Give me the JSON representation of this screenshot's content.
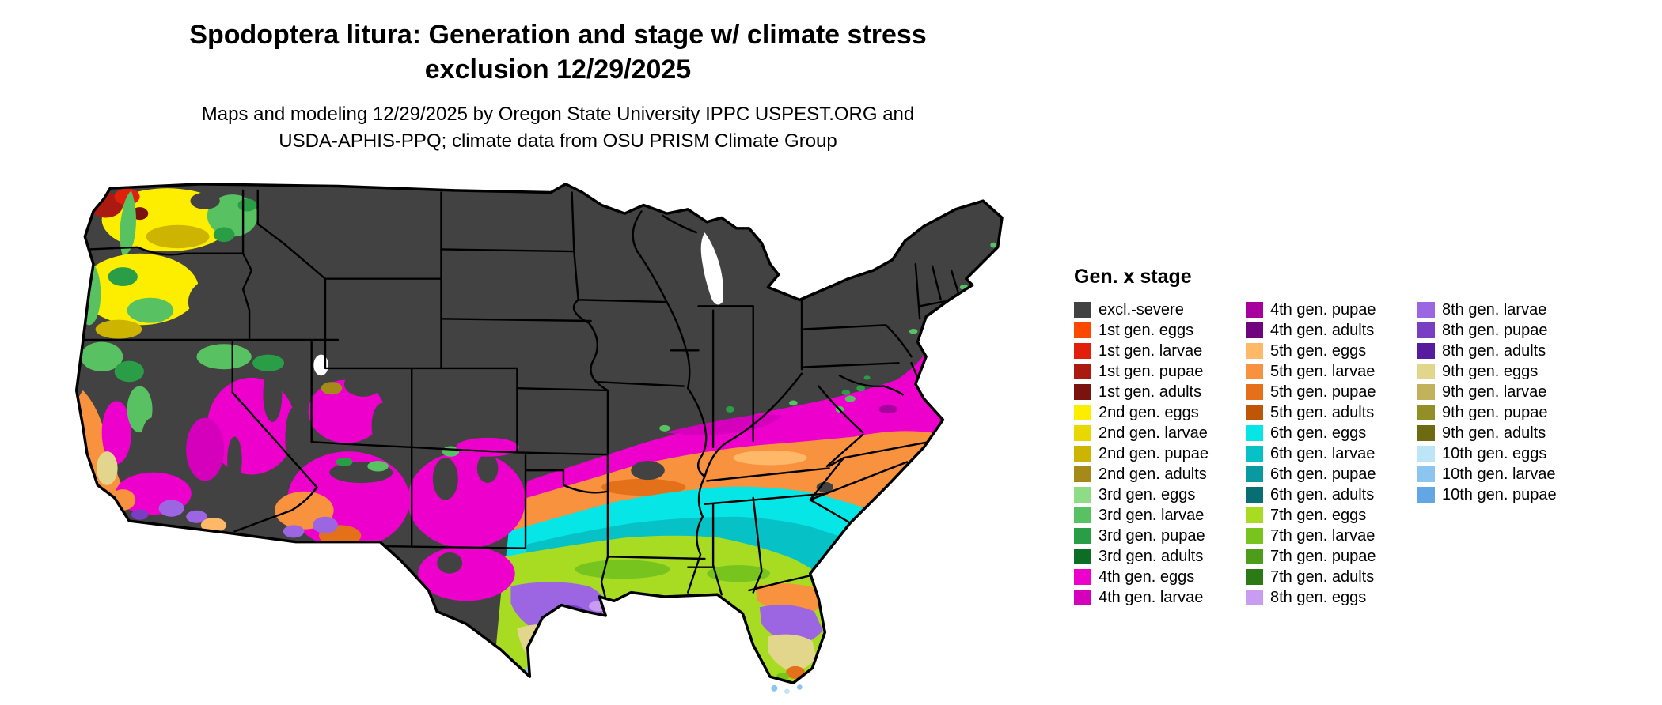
{
  "title": {
    "line1": "Spodoptera litura: Generation and stage w/ climate stress",
    "line2": "exclusion 12/29/2025"
  },
  "subtitle": {
    "line1": "Maps and modeling 12/29/2025 by Oregon State University IPPC USPEST.ORG and",
    "line2": "USDA-APHIS-PPQ; climate data from OSU PRISM Climate Group"
  },
  "legend": {
    "title": "Gen. x stage",
    "columns": [
      {
        "items": [
          {
            "key": "excl",
            "label": "excl.-severe",
            "color": "#424242"
          },
          {
            "key": "g1_eggs",
            "label": "1st gen. eggs",
            "color": "#fb4a00"
          },
          {
            "key": "g1_larvae",
            "label": "1st gen. larvae",
            "color": "#e0200a"
          },
          {
            "key": "g1_pupae",
            "label": "1st gen. pupae",
            "color": "#aa1a10"
          },
          {
            "key": "g1_adults",
            "label": "1st gen. adults",
            "color": "#7a120e"
          },
          {
            "key": "g2_eggs",
            "label": "2nd gen. eggs",
            "color": "#fdee00"
          },
          {
            "key": "g2_larvae",
            "label": "2nd gen. larvae",
            "color": "#e8d800"
          },
          {
            "key": "g2_pupae",
            "label": "2nd gen. pupae",
            "color": "#ccb400"
          },
          {
            "key": "g2_adults",
            "label": "2nd gen. adults",
            "color": "#a58a1a"
          },
          {
            "key": "g3_eggs",
            "label": "3rd gen. eggs",
            "color": "#8edc86"
          },
          {
            "key": "g3_larvae",
            "label": "3rd gen. larvae",
            "color": "#58c262"
          },
          {
            "key": "g3_pupae",
            "label": "3rd gen. pupae",
            "color": "#2a9e46"
          },
          {
            "key": "g3_adults",
            "label": "3rd gen. adults",
            "color": "#0b6e24"
          },
          {
            "key": "g4_eggs",
            "label": "4th gen. eggs",
            "color": "#ee00cc"
          },
          {
            "key": "g4_larvae",
            "label": "4th gen. larvae",
            "color": "#d400bc"
          }
        ]
      },
      {
        "items": [
          {
            "key": "g4_pupae",
            "label": "4th gen. pupae",
            "color": "#a8009e"
          },
          {
            "key": "g4_adults",
            "label": "4th gen. adults",
            "color": "#6f047e"
          },
          {
            "key": "g5_eggs",
            "label": "5th gen. eggs",
            "color": "#ffb768"
          },
          {
            "key": "g5_larvae",
            "label": "5th gen. larvae",
            "color": "#f8923e"
          },
          {
            "key": "g5_pupae",
            "label": "5th gen. pupae",
            "color": "#e4701a"
          },
          {
            "key": "g5_adults",
            "label": "5th gen. adults",
            "color": "#be5606"
          },
          {
            "key": "g6_eggs",
            "label": "6th gen. eggs",
            "color": "#06e6e6"
          },
          {
            "key": "g6_larvae",
            "label": "6th gen. larvae",
            "color": "#06c2c6"
          },
          {
            "key": "g6_pupae",
            "label": "6th gen. pupae",
            "color": "#089aa0"
          },
          {
            "key": "g6_adults",
            "label": "6th gen. adults",
            "color": "#096e74"
          },
          {
            "key": "g7_eggs",
            "label": "7th gen. eggs",
            "color": "#a8dc22"
          },
          {
            "key": "g7_larvae",
            "label": "7th gen. larvae",
            "color": "#78c41e"
          },
          {
            "key": "g7_pupae",
            "label": "7th gen. pupae",
            "color": "#4c9e1a"
          },
          {
            "key": "g7_adults",
            "label": "7th gen. adults",
            "color": "#2c7a16"
          },
          {
            "key": "g8_eggs",
            "label": "8th gen. eggs",
            "color": "#c89cf0"
          }
        ]
      },
      {
        "items": [
          {
            "key": "g8_larvae",
            "label": "8th gen. larvae",
            "color": "#9c66e2"
          },
          {
            "key": "g8_pupae",
            "label": "8th gen. pupae",
            "color": "#7a3ec2"
          },
          {
            "key": "g8_adults",
            "label": "8th gen. adults",
            "color": "#571c9e"
          },
          {
            "key": "g9_eggs",
            "label": "9th gen. eggs",
            "color": "#e2d68c"
          },
          {
            "key": "g9_larvae",
            "label": "9th gen. larvae",
            "color": "#c2b25c"
          },
          {
            "key": "g9_pupae",
            "label": "9th gen. pupae",
            "color": "#948e26"
          },
          {
            "key": "g9_adults",
            "label": "9th gen. adults",
            "color": "#6e6a12"
          },
          {
            "key": "g10_eggs",
            "label": "10th gen. eggs",
            "color": "#bce6f8"
          },
          {
            "key": "g10_larvae",
            "label": "10th gen. larvae",
            "color": "#8cc6f0"
          },
          {
            "key": "g10_pupae",
            "label": "10th gen. pupae",
            "color": "#62a6e6"
          }
        ]
      }
    ]
  }
}
